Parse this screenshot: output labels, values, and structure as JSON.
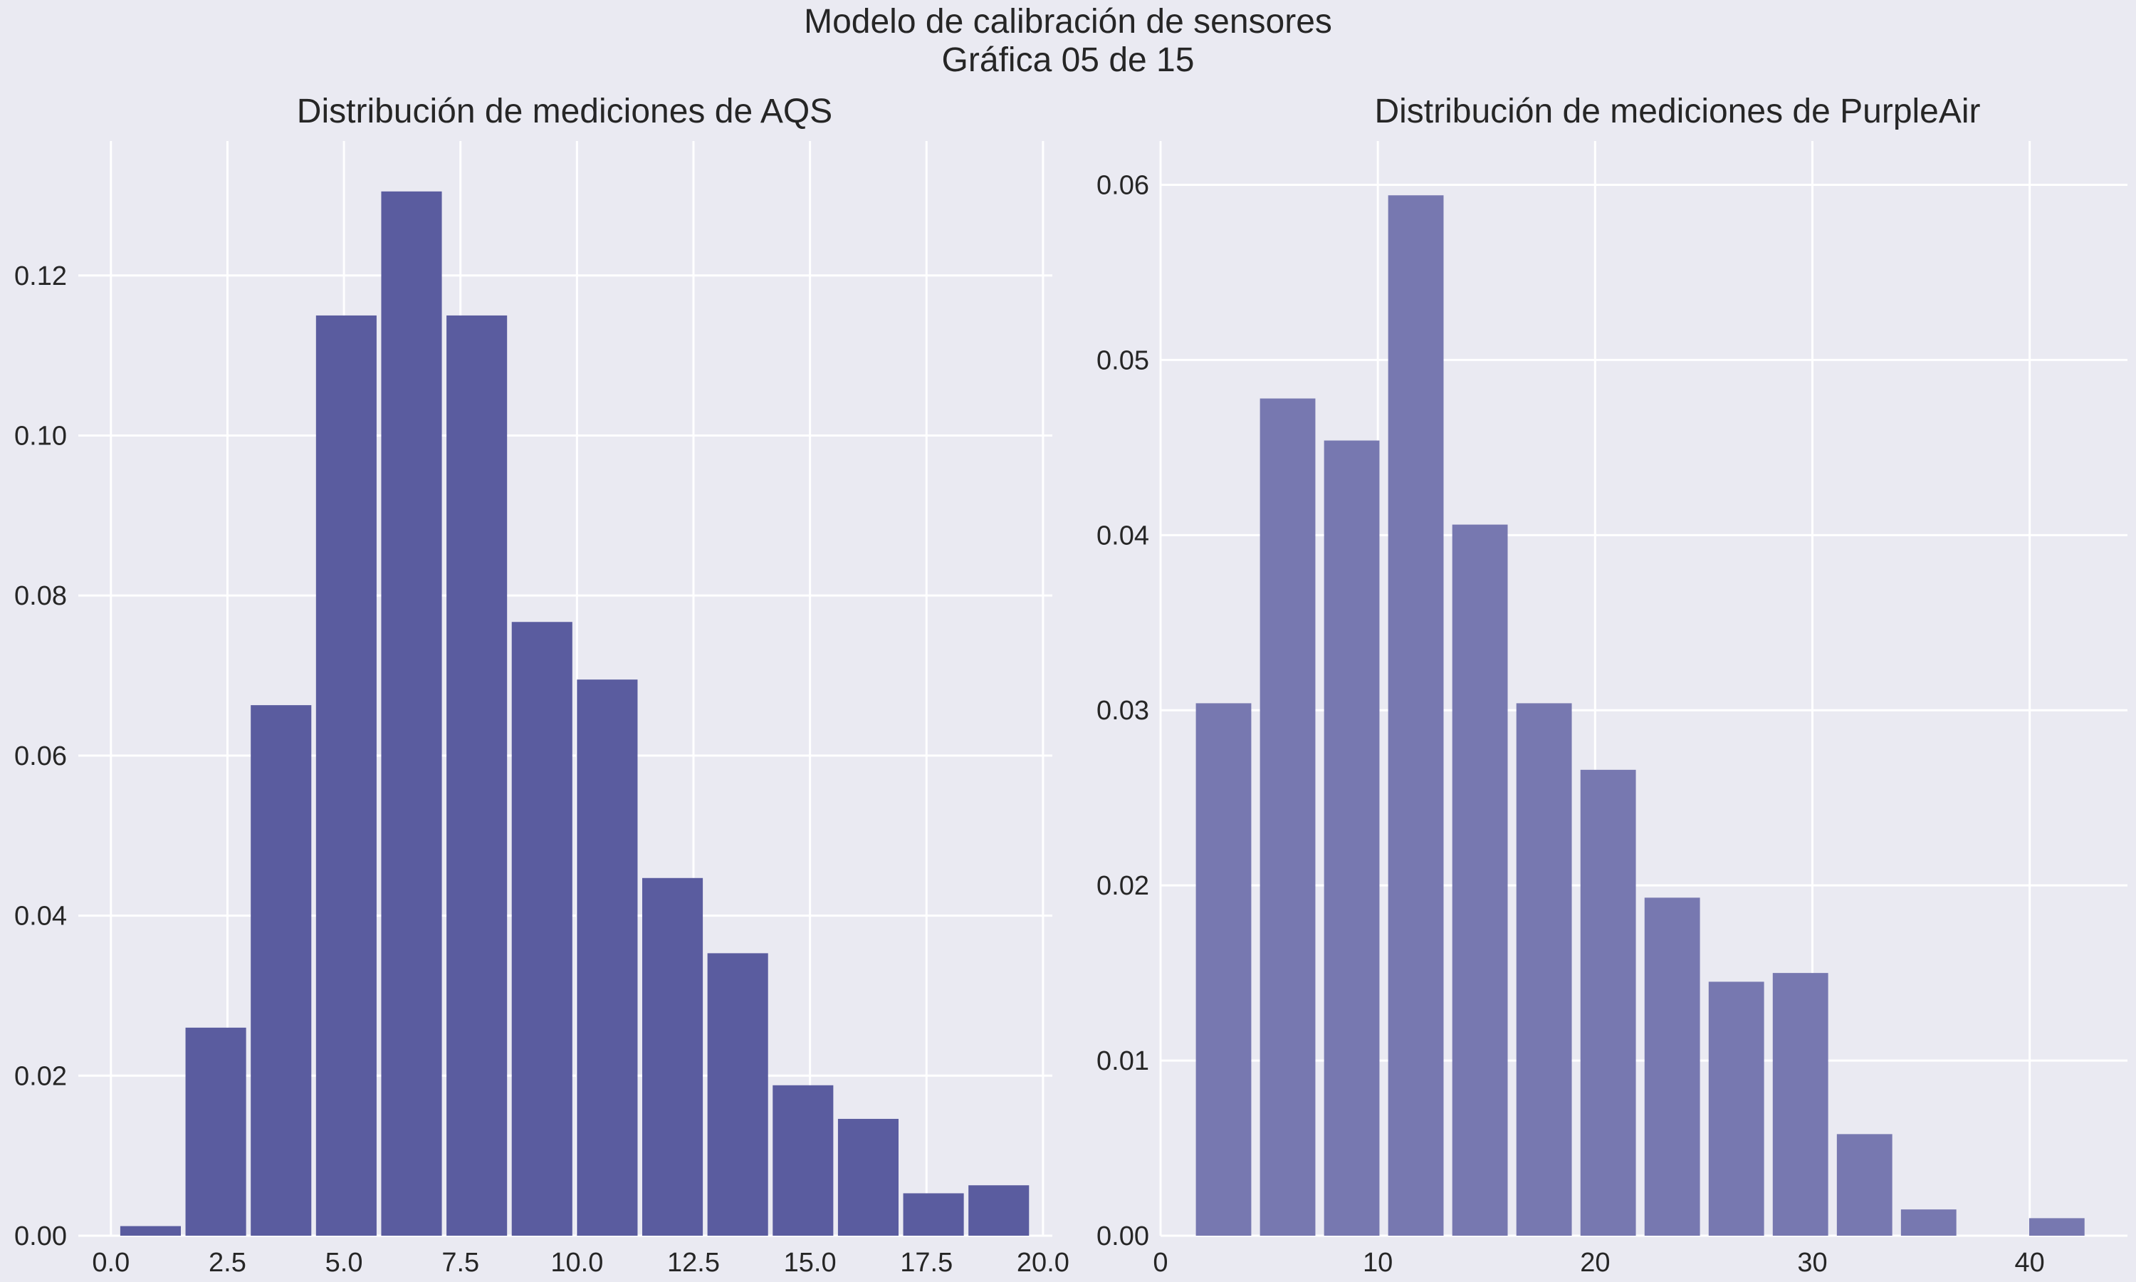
{
  "figure": {
    "suptitle_line1": "Modelo de calibración de sensores",
    "suptitle_line2": "Gráfica 05 de 15",
    "background": "#eaeaf2"
  },
  "chart_data": [
    {
      "type": "bar",
      "title": "Distribución de mediciones de AQS",
      "xlabel": "",
      "ylabel": "",
      "bar_color": "#5a5c9f",
      "bar_width": 1.3,
      "x": [
        0.85,
        2.25,
        3.65,
        5.05,
        6.45,
        7.85,
        9.25,
        10.65,
        12.05,
        13.45,
        14.85,
        16.25,
        17.65,
        19.05
      ],
      "values": [
        0.0012,
        0.026,
        0.0663,
        0.115,
        0.1305,
        0.115,
        0.0767,
        0.0695,
        0.0447,
        0.0353,
        0.0188,
        0.0146,
        0.0053,
        0.0063
      ],
      "xlim": [
        -0.7,
        20.2
      ],
      "ylim": [
        0,
        0.1368
      ],
      "xticks": [
        0.0,
        2.5,
        5.0,
        7.5,
        10.0,
        12.5,
        15.0,
        17.5,
        20.0
      ],
      "xtick_labels": [
        "0.0",
        "2.5",
        "5.0",
        "7.5",
        "10.0",
        "12.5",
        "15.0",
        "17.5",
        "20.0"
      ],
      "yticks": [
        0.0,
        0.02,
        0.04,
        0.06,
        0.08,
        0.1,
        0.12
      ],
      "ytick_labels": [
        "0.00",
        "0.02",
        "0.04",
        "0.06",
        "0.08",
        "0.10",
        "0.12"
      ],
      "grid": true
    },
    {
      "type": "bar",
      "title": "Distribución de mediciones de PurpleAir",
      "xlabel": "",
      "ylabel": "",
      "bar_color": "#7778b0",
      "bar_width": 2.55,
      "x": [
        2.9,
        5.85,
        8.8,
        11.75,
        14.7,
        17.65,
        20.6,
        23.55,
        26.5,
        29.45,
        32.4,
        35.35,
        38.3,
        41.25
      ],
      "values": [
        0.0304,
        0.0478,
        0.0454,
        0.0594,
        0.0406,
        0.0304,
        0.0266,
        0.0193,
        0.0145,
        0.015,
        0.0058,
        0.0015,
        0.0,
        0.001
      ],
      "xlim": [
        0,
        44.5
      ],
      "ylim": [
        0,
        0.0625
      ],
      "xticks": [
        0,
        10,
        20,
        30,
        40
      ],
      "xtick_labels": [
        "0",
        "10",
        "20",
        "30",
        "40"
      ],
      "yticks": [
        0.0,
        0.01,
        0.02,
        0.03,
        0.04,
        0.05,
        0.06
      ],
      "ytick_labels": [
        "0.00",
        "0.01",
        "0.02",
        "0.03",
        "0.04",
        "0.05",
        "0.06"
      ],
      "grid": true
    }
  ]
}
